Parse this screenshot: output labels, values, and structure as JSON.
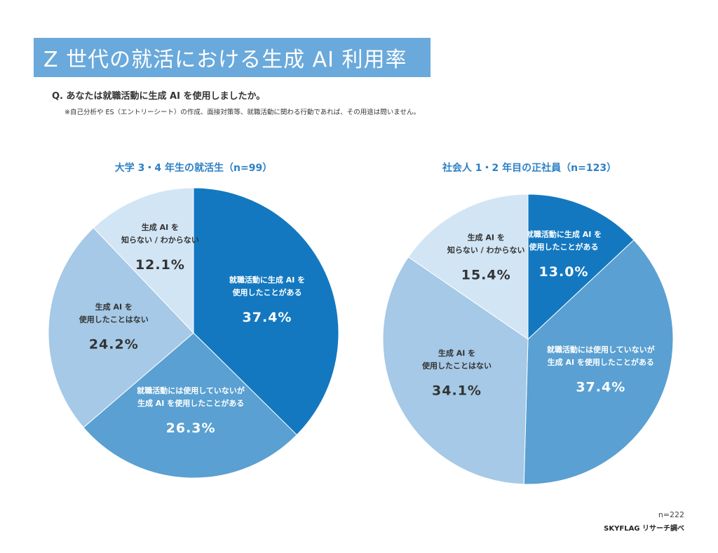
{
  "header": {
    "title": "Z 世代の就活における生成 AI 利用率",
    "question": "Q. あなたは就職活動に生成 AI を使用しましたか。",
    "note": "※自己分析や ES（エントリーシート）の作成、面接対策等、就職活動に関わる行動であれば、その用途は問いません。"
  },
  "footer": {
    "total_n": "n=222",
    "source": "SKYFLAG リサーチ調べ"
  },
  "chart_data": [
    {
      "type": "pie",
      "title": "大学 3・4 年生の就活生（n=99）",
      "slices": [
        {
          "label_lines": [
            "就職活動に生成 AI を",
            "使用したことがある"
          ],
          "value": 37.4,
          "value_text": "37.4%",
          "color": "#1378c0",
          "text_color": "#ffffff"
        },
        {
          "label_lines": [
            "就職活動には使用していないが",
            "生成 AI を使用したことがある"
          ],
          "value": 26.3,
          "value_text": "26.3%",
          "color": "#5aa0d2",
          "text_color": "#ffffff"
        },
        {
          "label_lines": [
            "生成 AI を",
            "使用したことはない"
          ],
          "value": 24.2,
          "value_text": "24.2%",
          "color": "#a5c9e6",
          "text_color": "#333333"
        },
        {
          "label_lines": [
            "生成 AI を",
            "知らない / わからない"
          ],
          "value": 12.1,
          "value_text": "12.1%",
          "color": "#d2e5f4",
          "text_color": "#333333"
        }
      ]
    },
    {
      "type": "pie",
      "title": "社会人 1・2 年目の正社員（n=123）",
      "slices": [
        {
          "label_lines": [
            "就職活動に生成 AI を",
            "使用したことがある"
          ],
          "value": 13.0,
          "value_text": "13.0%",
          "color": "#1378c0",
          "text_color": "#ffffff"
        },
        {
          "label_lines": [
            "就職活動には使用していないが",
            "生成 AI を使用したことがある"
          ],
          "value": 37.4,
          "value_text": "37.4%",
          "color": "#5aa0d2",
          "text_color": "#ffffff"
        },
        {
          "label_lines": [
            "生成 AI を",
            "使用したことはない"
          ],
          "value": 34.1,
          "value_text": "34.1%",
          "color": "#a5c9e6",
          "text_color": "#333333"
        },
        {
          "label_lines": [
            "生成 AI を",
            "知らない / わからない"
          ],
          "value": 15.4,
          "value_text": "15.4%",
          "color": "#d2e5f4",
          "text_color": "#333333"
        }
      ]
    }
  ]
}
